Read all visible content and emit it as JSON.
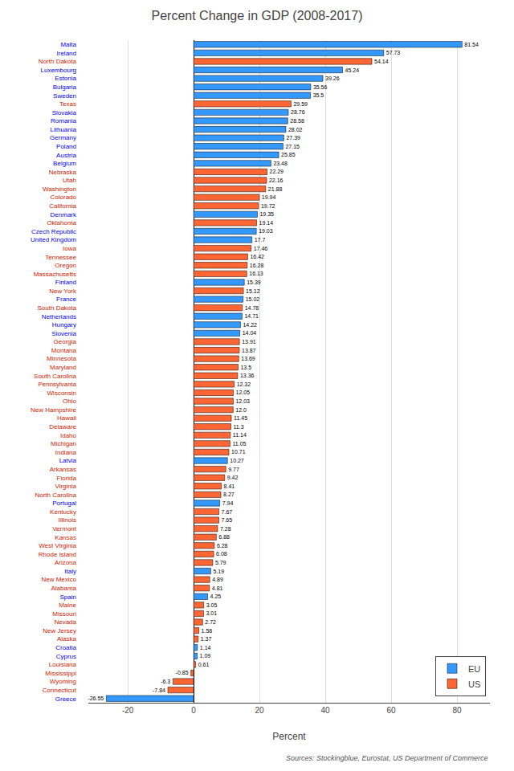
{
  "chart_data": {
    "type": "bar",
    "orientation": "horizontal",
    "title": "Percent Change in GDP (2008-2017)",
    "xlabel": "Percent",
    "annotations": [
      "Sources: Stockingblue, Eurostat, US Department of Commerce"
    ],
    "categories": [
      "Malta",
      "Ireland",
      "North Dakota",
      "Luxembourg",
      "Estonia",
      "Bulgaria",
      "Sweden",
      "Texas",
      "Slovakia",
      "Romania",
      "Lithuania",
      "Germany",
      "Poland",
      "Austria",
      "Belgium",
      "Nebraska",
      "Utah",
      "Washington",
      "Colorado",
      "California",
      "Denmark",
      "Oklahoma",
      "Czech Republic",
      "United Kingdom",
      "Iowa",
      "Tennessee",
      "Oregon",
      "Massachusetts",
      "Finland",
      "New York",
      "France",
      "South Dakota",
      "Netherlands",
      "Hungary",
      "Slovenia",
      "Georgia",
      "Montana",
      "Minnesota",
      "Maryland",
      "South Carolina",
      "Pennsylvania",
      "Wisconsin",
      "Ohio",
      "New Hampshire",
      "Hawaii",
      "Delaware",
      "Idaho",
      "Michigan",
      "Indiana",
      "Latvia",
      "Arkansas",
      "Florida",
      "Virginia",
      "North Carolina",
      "Portugal",
      "Kentucky",
      "Illinois",
      "Vermont",
      "Kansas",
      "West Virginia",
      "Rhode Island",
      "Arizona",
      "Italy",
      "New Mexico",
      "Alabama",
      "Spain",
      "Maine",
      "Missouri",
      "Nevada",
      "New Jersey",
      "Alaska",
      "Croatia",
      "Cyprus",
      "Louisiana",
      "Mississippi",
      "Wyoming",
      "Connecticut",
      "Greece"
    ],
    "series": [
      {
        "name": "EU",
        "color": "#3399FF",
        "values": [
          81.54,
          57.73,
          null,
          45.24,
          39.26,
          35.56,
          35.5,
          null,
          28.76,
          28.58,
          28.02,
          27.39,
          27.15,
          25.85,
          23.48,
          null,
          null,
          null,
          null,
          null,
          19.35,
          null,
          19.03,
          17.7,
          null,
          null,
          null,
          null,
          15.39,
          null,
          15.02,
          null,
          14.71,
          14.22,
          14.04,
          null,
          null,
          null,
          null,
          null,
          null,
          null,
          null,
          null,
          null,
          null,
          null,
          null,
          null,
          10.27,
          null,
          null,
          null,
          null,
          7.94,
          null,
          null,
          null,
          null,
          null,
          null,
          null,
          5.19,
          null,
          null,
          4.25,
          null,
          null,
          null,
          null,
          null,
          1.14,
          1.09,
          null,
          null,
          null,
          null,
          -26.55
        ],
        "value_labels": [
          "81.54",
          "57.73",
          null,
          "45.24",
          "39.26",
          "35.56",
          "35.5",
          null,
          "28.76",
          "28.58",
          "28.02",
          "27.39",
          "27.15",
          "25.85",
          "23.48",
          null,
          null,
          null,
          null,
          null,
          "19.35",
          null,
          "19.03",
          "17.7",
          null,
          null,
          null,
          null,
          "15.39",
          null,
          "15.02",
          null,
          "14.71",
          "14.22",
          "14.04",
          null,
          null,
          null,
          null,
          null,
          null,
          null,
          null,
          null,
          null,
          null,
          null,
          null,
          null,
          "10.27",
          null,
          null,
          null,
          null,
          "7.94",
          null,
          null,
          null,
          null,
          null,
          null,
          null,
          "5.19",
          null,
          null,
          "4.25",
          null,
          null,
          null,
          null,
          null,
          "1.14",
          "1.09",
          null,
          null,
          null,
          null,
          "-26.55"
        ]
      },
      {
        "name": "US",
        "color": "#FF6633",
        "values": [
          null,
          null,
          54.14,
          null,
          null,
          null,
          null,
          29.59,
          null,
          null,
          null,
          null,
          null,
          null,
          null,
          22.29,
          22.16,
          21.88,
          19.94,
          19.72,
          null,
          19.14,
          null,
          null,
          17.46,
          16.42,
          16.28,
          16.13,
          null,
          15.12,
          null,
          14.78,
          null,
          null,
          null,
          13.91,
          13.87,
          13.69,
          13.5,
          13.36,
          12.32,
          12.05,
          12.03,
          12.0,
          11.45,
          11.3,
          11.14,
          11.05,
          10.71,
          null,
          9.77,
          9.42,
          8.41,
          8.27,
          null,
          7.67,
          7.65,
          7.28,
          6.88,
          6.28,
          6.08,
          5.79,
          null,
          4.89,
          4.81,
          null,
          3.05,
          3.01,
          2.72,
          1.58,
          1.37,
          null,
          null,
          0.61,
          -0.85,
          -6.3,
          -7.84,
          null
        ],
        "value_labels": [
          null,
          null,
          "54.14",
          null,
          null,
          null,
          null,
          "29.59",
          null,
          null,
          null,
          null,
          null,
          null,
          null,
          "22.29",
          "22.16",
          "21.88",
          "19.94",
          "19.72",
          null,
          "19.14",
          null,
          null,
          "17.46",
          "16.42",
          "16.28",
          "16.13",
          null,
          "15.12",
          null,
          "14.78",
          null,
          null,
          null,
          "13.91",
          "13.87",
          "13.69",
          "13.5",
          "13.36",
          "12.32",
          "12.05",
          "12.03",
          "12.0",
          "11.45",
          "11.3",
          "11.14",
          "11.05",
          "10.71",
          null,
          "9.77",
          "9.42",
          "8.41",
          "8.27",
          null,
          "7.67",
          "7.65",
          "7.28",
          "6.88",
          "6.28",
          "6.08",
          "5.79",
          null,
          "4.89",
          "4.81",
          null,
          "3.05",
          "3.01",
          "2.72",
          "1.58",
          "1.37",
          null,
          null,
          "0.61",
          "-0.85",
          "-6.3",
          "-7.84",
          null
        ]
      }
    ],
    "xlim": [
      -32,
      90
    ],
    "xticks": [
      -20,
      0,
      20,
      40,
      60,
      80
    ],
    "grid": true,
    "legend": "lower right",
    "data_labels": true
  }
}
